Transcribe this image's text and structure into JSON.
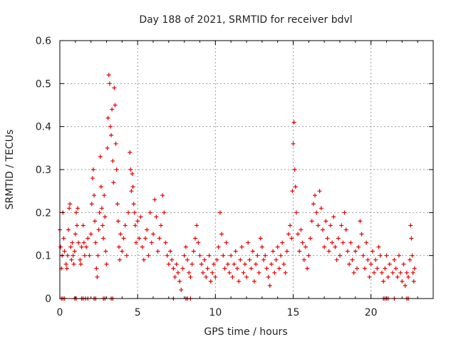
{
  "chart_data": {
    "type": "scatter",
    "title": "Day 188 of 2021, SRMTID for receiver bdvl",
    "xlabel": "GPS time / hours",
    "ylabel": "SRMTID / TECUs",
    "xlim": [
      0,
      24
    ],
    "ylim": [
      0,
      0.6
    ],
    "xticks": [
      0,
      5,
      10,
      15,
      20
    ],
    "xtick_labels": [
      "0",
      "5",
      "10",
      "15",
      "20"
    ],
    "yticks": [
      0,
      0.1,
      0.2,
      0.3,
      0.4,
      0.5,
      0.6
    ],
    "ytick_labels": [
      "0",
      "0.1",
      "0.2",
      "0.3",
      "0.4",
      "0.5",
      "0.6"
    ],
    "grid": true,
    "legend": "none",
    "marker": "plus",
    "series": [
      {
        "name": "SRMTID",
        "color": "#e60000",
        "points": [
          [
            0.0,
            0.16
          ],
          [
            0.05,
            0.12
          ],
          [
            0.1,
            0.07
          ],
          [
            0.15,
            0.1
          ],
          [
            0.2,
            0.2
          ],
          [
            0.25,
            0.14
          ],
          [
            0.3,
            0.11
          ],
          [
            0.4,
            0.08
          ],
          [
            0.45,
            0.07
          ],
          [
            0.5,
            0.1
          ],
          [
            0.55,
            0.16
          ],
          [
            0.6,
            0.21
          ],
          [
            0.65,
            0.22
          ],
          [
            0.7,
            0.12
          ],
          [
            0.75,
            0.09
          ],
          [
            0.8,
            0.13
          ],
          [
            0.85,
            0.1
          ],
          [
            0.9,
            0.08
          ],
          [
            0.95,
            0.11
          ],
          [
            1.0,
            0.15
          ],
          [
            1.05,
            0.2
          ],
          [
            1.1,
            0.17
          ],
          [
            1.15,
            0.21
          ],
          [
            1.2,
            0.13
          ],
          [
            1.3,
            0.09
          ],
          [
            1.35,
            0.08
          ],
          [
            1.4,
            0.12
          ],
          [
            1.5,
            0.17
          ],
          [
            1.55,
            0.13
          ],
          [
            1.6,
            0.1
          ],
          [
            1.7,
            0.12
          ],
          [
            1.8,
            0.14
          ],
          [
            1.9,
            0.1
          ],
          [
            2.0,
            0.15
          ],
          [
            2.05,
            0.22
          ],
          [
            2.1,
            0.28
          ],
          [
            2.15,
            0.3
          ],
          [
            2.2,
            0.24
          ],
          [
            2.25,
            0.18
          ],
          [
            2.3,
            0.13
          ],
          [
            2.35,
            0.07
          ],
          [
            2.4,
            0.05
          ],
          [
            2.45,
            0.1
          ],
          [
            2.5,
            0.16
          ],
          [
            2.55,
            0.2
          ],
          [
            2.6,
            0.33
          ],
          [
            2.65,
            0.26
          ],
          [
            2.7,
            0.21
          ],
          [
            2.75,
            0.17
          ],
          [
            2.8,
            0.14
          ],
          [
            2.85,
            0.24
          ],
          [
            2.9,
            0.19
          ],
          [
            2.95,
            0.11
          ],
          [
            3.0,
            0.08
          ],
          [
            3.05,
            0.35
          ],
          [
            3.1,
            0.42
          ],
          [
            3.15,
            0.52
          ],
          [
            3.2,
            0.5
          ],
          [
            3.25,
            0.4
          ],
          [
            3.3,
            0.38
          ],
          [
            3.35,
            0.44
          ],
          [
            3.4,
            0.32
          ],
          [
            3.45,
            0.27
          ],
          [
            3.5,
            0.49
          ],
          [
            3.55,
            0.45
          ],
          [
            3.6,
            0.36
          ],
          [
            3.65,
            0.3
          ],
          [
            3.7,
            0.22
          ],
          [
            3.75,
            0.18
          ],
          [
            3.8,
            0.12
          ],
          [
            3.85,
            0.09
          ],
          [
            3.9,
            0.15
          ],
          [
            4.0,
            0.11
          ],
          [
            4.1,
            0.14
          ],
          [
            4.2,
            0.17
          ],
          [
            4.3,
            0.1
          ],
          [
            4.4,
            0.2
          ],
          [
            4.5,
            0.34
          ],
          [
            4.55,
            0.3
          ],
          [
            4.6,
            0.25
          ],
          [
            4.65,
            0.29
          ],
          [
            4.7,
            0.26
          ],
          [
            4.75,
            0.22
          ],
          [
            4.8,
            0.2
          ],
          [
            4.85,
            0.17
          ],
          [
            4.9,
            0.13
          ],
          [
            5.0,
            0.18
          ],
          [
            5.1,
            0.14
          ],
          [
            5.2,
            0.19
          ],
          [
            5.3,
            0.12
          ],
          [
            5.4,
            0.09
          ],
          [
            5.5,
            0.14
          ],
          [
            5.6,
            0.16
          ],
          [
            5.7,
            0.1
          ],
          [
            5.8,
            0.2
          ],
          [
            5.9,
            0.13
          ],
          [
            6.0,
            0.15
          ],
          [
            6.1,
            0.23
          ],
          [
            6.2,
            0.19
          ],
          [
            6.3,
            0.11
          ],
          [
            6.4,
            0.14
          ],
          [
            6.5,
            0.17
          ],
          [
            6.6,
            0.24
          ],
          [
            6.7,
            0.2
          ],
          [
            6.8,
            0.13
          ],
          [
            6.9,
            0.1
          ],
          [
            7.0,
            0.08
          ],
          [
            7.1,
            0.11
          ],
          [
            7.2,
            0.09
          ],
          [
            7.3,
            0.07
          ],
          [
            7.4,
            0.05
          ],
          [
            7.5,
            0.08
          ],
          [
            7.6,
            0.06
          ],
          [
            7.7,
            0.04
          ],
          [
            7.8,
            0.02
          ],
          [
            7.9,
            0.07
          ],
          [
            8.0,
            0.1
          ],
          [
            8.1,
            0.12
          ],
          [
            8.2,
            0.09
          ],
          [
            8.3,
            0.06
          ],
          [
            8.4,
            0.05
          ],
          [
            8.5,
            0.08
          ],
          [
            8.6,
            0.11
          ],
          [
            8.7,
            0.14
          ],
          [
            8.8,
            0.17
          ],
          [
            8.9,
            0.13
          ],
          [
            9.0,
            0.1
          ],
          [
            9.1,
            0.08
          ],
          [
            9.2,
            0.06
          ],
          [
            9.3,
            0.09
          ],
          [
            9.4,
            0.05
          ],
          [
            9.5,
            0.07
          ],
          [
            9.6,
            0.1
          ],
          [
            9.7,
            0.04
          ],
          [
            9.8,
            0.06
          ],
          [
            9.9,
            0.08
          ],
          [
            10.0,
            0.05
          ],
          [
            10.1,
            0.09
          ],
          [
            10.2,
            0.12
          ],
          [
            10.3,
            0.2
          ],
          [
            10.4,
            0.15
          ],
          [
            10.5,
            0.1
          ],
          [
            10.6,
            0.07
          ],
          [
            10.7,
            0.13
          ],
          [
            10.8,
            0.08
          ],
          [
            10.9,
            0.06
          ],
          [
            11.0,
            0.1
          ],
          [
            11.1,
            0.05
          ],
          [
            11.2,
            0.08
          ],
          [
            11.3,
            0.11
          ],
          [
            11.4,
            0.07
          ],
          [
            11.5,
            0.04
          ],
          [
            11.6,
            0.09
          ],
          [
            11.7,
            0.12
          ],
          [
            11.8,
            0.06
          ],
          [
            11.9,
            0.08
          ],
          [
            12.0,
            0.05
          ],
          [
            12.1,
            0.13
          ],
          [
            12.2,
            0.09
          ],
          [
            12.3,
            0.07
          ],
          [
            12.4,
            0.11
          ],
          [
            12.5,
            0.04
          ],
          [
            12.6,
            0.08
          ],
          [
            12.7,
            0.1
          ],
          [
            12.8,
            0.06
          ],
          [
            12.9,
            0.14
          ],
          [
            13.0,
            0.12
          ],
          [
            13.1,
            0.09
          ],
          [
            13.2,
            0.1
          ],
          [
            13.3,
            0.07
          ],
          [
            13.4,
            0.05
          ],
          [
            13.5,
            0.03
          ],
          [
            13.6,
            0.08
          ],
          [
            13.7,
            0.11
          ],
          [
            13.8,
            0.06
          ],
          [
            13.9,
            0.09
          ],
          [
            14.0,
            0.12
          ],
          [
            14.1,
            0.07
          ],
          [
            14.2,
            0.1
          ],
          [
            14.3,
            0.13
          ],
          [
            14.4,
            0.08
          ],
          [
            14.5,
            0.06
          ],
          [
            14.6,
            0.11
          ],
          [
            14.7,
            0.15
          ],
          [
            14.8,
            0.17
          ],
          [
            14.9,
            0.14
          ],
          [
            14.95,
            0.25
          ],
          [
            15.0,
            0.36
          ],
          [
            15.05,
            0.41
          ],
          [
            15.1,
            0.3
          ],
          [
            15.15,
            0.26
          ],
          [
            15.2,
            0.2
          ],
          [
            15.3,
            0.15
          ],
          [
            15.4,
            0.11
          ],
          [
            15.5,
            0.16
          ],
          [
            15.6,
            0.13
          ],
          [
            15.7,
            0.09
          ],
          [
            15.8,
            0.12
          ],
          [
            15.9,
            0.07
          ],
          [
            16.0,
            0.1
          ],
          [
            16.1,
            0.14
          ],
          [
            16.2,
            0.18
          ],
          [
            16.3,
            0.22
          ],
          [
            16.4,
            0.24
          ],
          [
            16.5,
            0.2
          ],
          [
            16.6,
            0.17
          ],
          [
            16.7,
            0.25
          ],
          [
            16.8,
            0.21
          ],
          [
            16.9,
            0.16
          ],
          [
            17.0,
            0.12
          ],
          [
            17.1,
            0.18
          ],
          [
            17.2,
            0.14
          ],
          [
            17.3,
            0.11
          ],
          [
            17.4,
            0.17
          ],
          [
            17.5,
            0.13
          ],
          [
            17.6,
            0.19
          ],
          [
            17.7,
            0.12
          ],
          [
            17.8,
            0.09
          ],
          [
            17.9,
            0.14
          ],
          [
            18.0,
            0.1
          ],
          [
            18.1,
            0.17
          ],
          [
            18.2,
            0.13
          ],
          [
            18.3,
            0.2
          ],
          [
            18.4,
            0.16
          ],
          [
            18.5,
            0.11
          ],
          [
            18.6,
            0.08
          ],
          [
            18.7,
            0.13
          ],
          [
            18.8,
            0.09
          ],
          [
            18.9,
            0.06
          ],
          [
            19.0,
            0.11
          ],
          [
            19.1,
            0.07
          ],
          [
            19.2,
            0.12
          ],
          [
            19.3,
            0.18
          ],
          [
            19.4,
            0.15
          ],
          [
            19.5,
            0.1
          ],
          [
            19.6,
            0.07
          ],
          [
            19.7,
            0.13
          ],
          [
            19.8,
            0.09
          ],
          [
            19.9,
            0.05
          ],
          [
            20.0,
            0.08
          ],
          [
            20.1,
            0.11
          ],
          [
            20.2,
            0.06
          ],
          [
            20.3,
            0.09
          ],
          [
            20.4,
            0.07
          ],
          [
            20.5,
            0.12
          ],
          [
            20.6,
            0.1
          ],
          [
            20.7,
            0.06
          ],
          [
            20.8,
            0.04
          ],
          [
            20.9,
            0.07
          ],
          [
            21.0,
            0.1
          ],
          [
            21.1,
            0.05
          ],
          [
            21.2,
            0.08
          ],
          [
            21.4,
            0.06
          ],
          [
            21.5,
            0.09
          ],
          [
            21.6,
            0.07
          ],
          [
            21.7,
            0.05
          ],
          [
            21.8,
            0.1
          ],
          [
            21.9,
            0.06
          ],
          [
            22.0,
            0.04
          ],
          [
            22.1,
            0.08
          ],
          [
            22.2,
            0.03
          ],
          [
            22.3,
            0.06
          ],
          [
            22.4,
            0.05
          ],
          [
            22.5,
            0.09
          ],
          [
            22.55,
            0.17
          ],
          [
            22.6,
            0.14
          ],
          [
            22.65,
            0.1
          ],
          [
            22.7,
            0.06
          ],
          [
            22.75,
            0.04
          ],
          [
            22.8,
            0.07
          ],
          [
            0.1,
            0.0
          ],
          [
            0.2,
            0.0
          ],
          [
            0.3,
            0.0
          ],
          [
            0.95,
            0.0
          ],
          [
            1.05,
            0.0
          ],
          [
            1.4,
            0.0
          ],
          [
            1.5,
            0.0
          ],
          [
            1.65,
            0.0
          ],
          [
            1.8,
            0.0
          ],
          [
            2.2,
            0.0
          ],
          [
            2.3,
            0.0
          ],
          [
            2.8,
            0.0
          ],
          [
            2.9,
            0.0
          ],
          [
            3.3,
            0.0
          ],
          [
            3.4,
            0.0
          ],
          [
            7.3,
            0.0
          ],
          [
            8.1,
            0.0
          ],
          [
            8.2,
            0.0
          ],
          [
            8.4,
            0.0
          ],
          [
            20.8,
            0.0
          ],
          [
            20.9,
            0.0
          ],
          [
            21.0,
            0.0
          ],
          [
            21.1,
            0.0
          ],
          [
            21.5,
            0.0
          ],
          [
            22.3,
            0.0
          ],
          [
            22.4,
            0.0
          ]
        ]
      }
    ]
  }
}
